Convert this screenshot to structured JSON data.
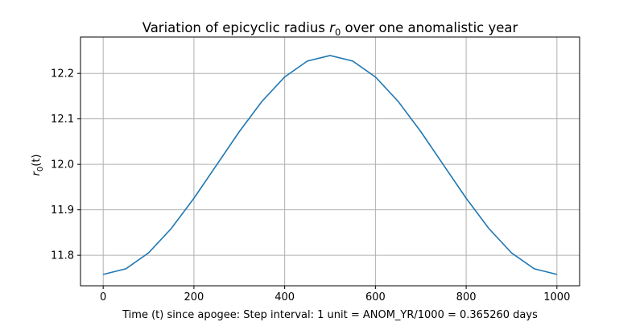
{
  "chart_data": {
    "type": "line",
    "title": "Variation of epicyclic radius r₀ over one anomalistic year",
    "title_parts": {
      "prefix": "Variation of epicyclic radius ",
      "symbol": "r",
      "subscript": "0",
      "suffix": " over one anomalistic year"
    },
    "xlabel": "Time (t) since apogee: Step interval: 1 unit = ANOM_YR/1000 = 0.365260 days",
    "ylabel": "r₀(t)",
    "ylabel_parts": {
      "symbol": "r",
      "subscript": "0",
      "suffix": "(t)"
    },
    "xlim": [
      -50,
      1050
    ],
    "ylim": [
      11.733,
      12.28
    ],
    "xticks": [
      0,
      200,
      400,
      600,
      800,
      1000
    ],
    "yticks": [
      11.8,
      11.9,
      12.0,
      12.1,
      12.2
    ],
    "ytick_labels": [
      "11.8",
      "11.9",
      "12.0",
      "12.1",
      "12.2"
    ],
    "grid": true,
    "series": [
      {
        "color": "#1f77b4",
        "x": [
          0,
          50,
          100,
          150,
          200,
          250,
          300,
          350,
          400,
          450,
          500,
          550,
          600,
          650,
          700,
          750,
          800,
          850,
          900,
          950,
          1000
        ],
        "y": [
          11.758,
          11.7703,
          11.8053,
          11.8589,
          11.9255,
          11.9987,
          12.072,
          12.1386,
          12.1922,
          12.2272,
          12.2393,
          12.2272,
          12.1922,
          12.1386,
          12.072,
          11.9987,
          11.9255,
          11.8589,
          11.8053,
          11.7703,
          11.758
        ]
      }
    ]
  }
}
